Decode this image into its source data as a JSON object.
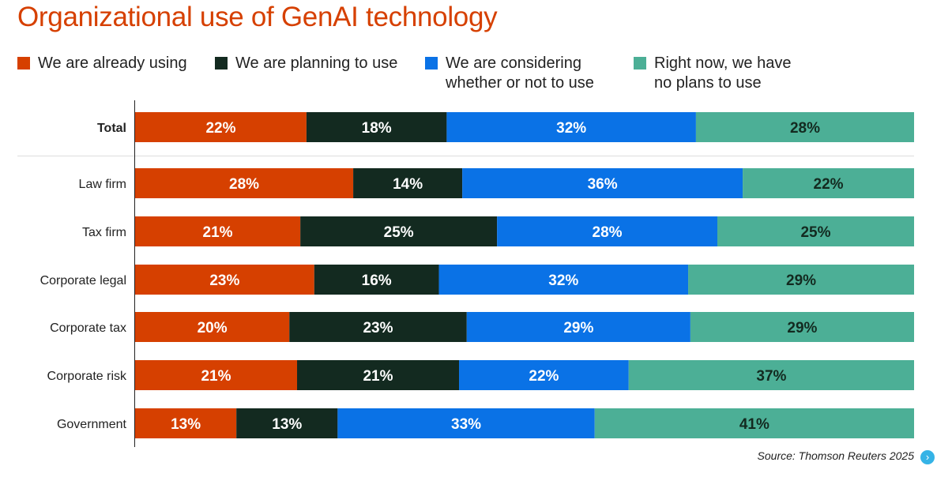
{
  "title": "Organizational use of GenAI technology",
  "legend": [
    {
      "label": "We are already using",
      "color": "#d64000"
    },
    {
      "label": "We are planning to use",
      "color": "#132a20"
    },
    {
      "label": "We are considering\nwhether or not to use",
      "color": "#0a72e6"
    },
    {
      "label": "Right now, we have\nno plans to use",
      "color": "#4caf96"
    }
  ],
  "source": "Source: Thomson Reuters 2025",
  "nav_icon": "chevron-right-circle-icon",
  "chart_data": {
    "type": "bar",
    "orientation": "horizontal",
    "stacked": true,
    "percent_stacked": true,
    "categories": [
      "Total",
      "Law firm",
      "Tax firm",
      "Corporate legal",
      "Corporate tax",
      "Corporate risk",
      "Government"
    ],
    "emphasized_category": "Total",
    "value_suffix": "%",
    "series": [
      {
        "name": "We are already using",
        "color": "#d64000",
        "label_color": "#ffffff",
        "values": [
          22,
          28,
          21,
          23,
          20,
          21,
          13
        ]
      },
      {
        "name": "We are planning to use",
        "color": "#132a20",
        "label_color": "#ffffff",
        "values": [
          18,
          14,
          25,
          16,
          23,
          21,
          13
        ]
      },
      {
        "name": "We are considering whether or not to use",
        "color": "#0a72e6",
        "label_color": "#ffffff",
        "values": [
          32,
          36,
          28,
          32,
          29,
          22,
          33
        ]
      },
      {
        "name": "Right now, we have no plans to use",
        "color": "#4caf96",
        "label_color": "#132a20",
        "values": [
          28,
          22,
          25,
          29,
          29,
          37,
          41
        ]
      }
    ]
  }
}
